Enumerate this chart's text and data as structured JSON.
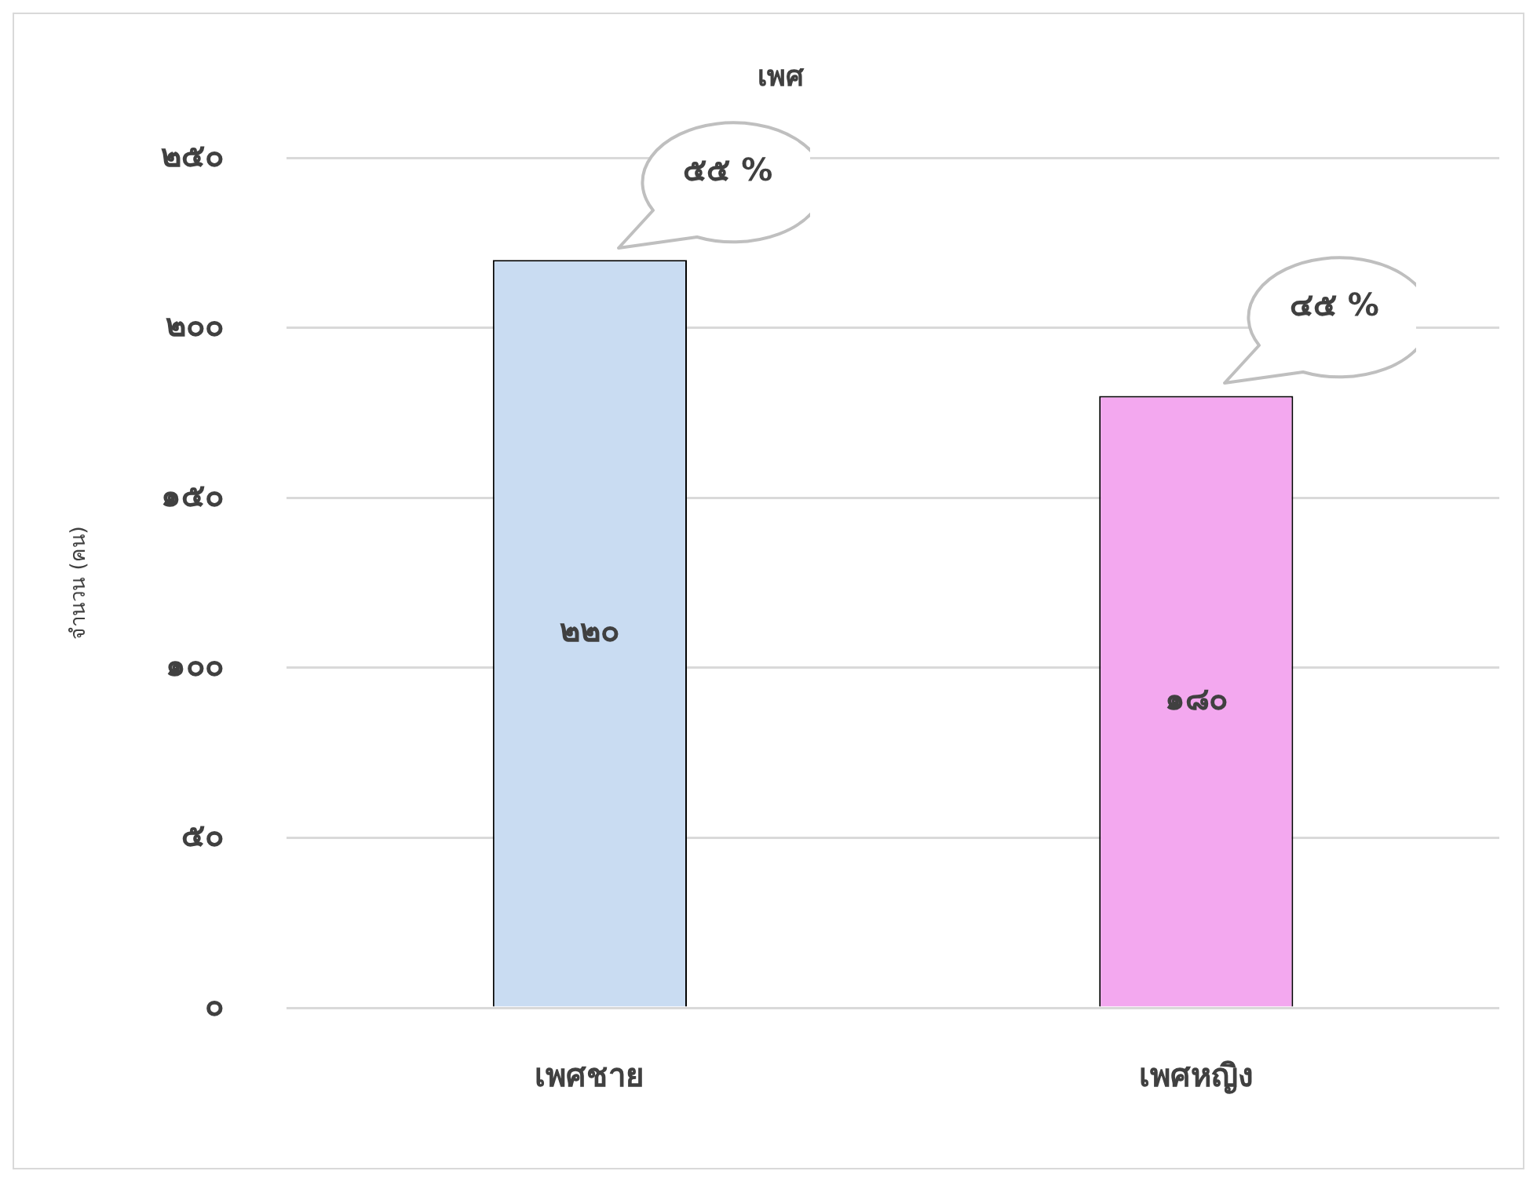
{
  "chart_data": {
    "type": "bar",
    "title": "เพศ",
    "ylabel": "จำนวน (คน)",
    "categories": [
      "เพศชาย",
      "เพศหญิง"
    ],
    "values": [
      220,
      180
    ],
    "colors": [
      "#c9dcf2",
      "#f3a8ef"
    ],
    "value_labels": [
      "๒๒๐",
      "๑๘๐"
    ],
    "ylim": [
      0,
      250
    ],
    "yticks": [
      {
        "value": 0,
        "label": "๐"
      },
      {
        "value": 50,
        "label": "๕๐"
      },
      {
        "value": 100,
        "label": "๑๐๐"
      },
      {
        "value": 150,
        "label": "๑๕๐"
      },
      {
        "value": 200,
        "label": "๒๐๐"
      },
      {
        "value": 250,
        "label": "๒๕๐"
      }
    ],
    "annotations": [
      "๕๕ %",
      "๔๕ %"
    ],
    "grid": "y",
    "legend": false
  }
}
